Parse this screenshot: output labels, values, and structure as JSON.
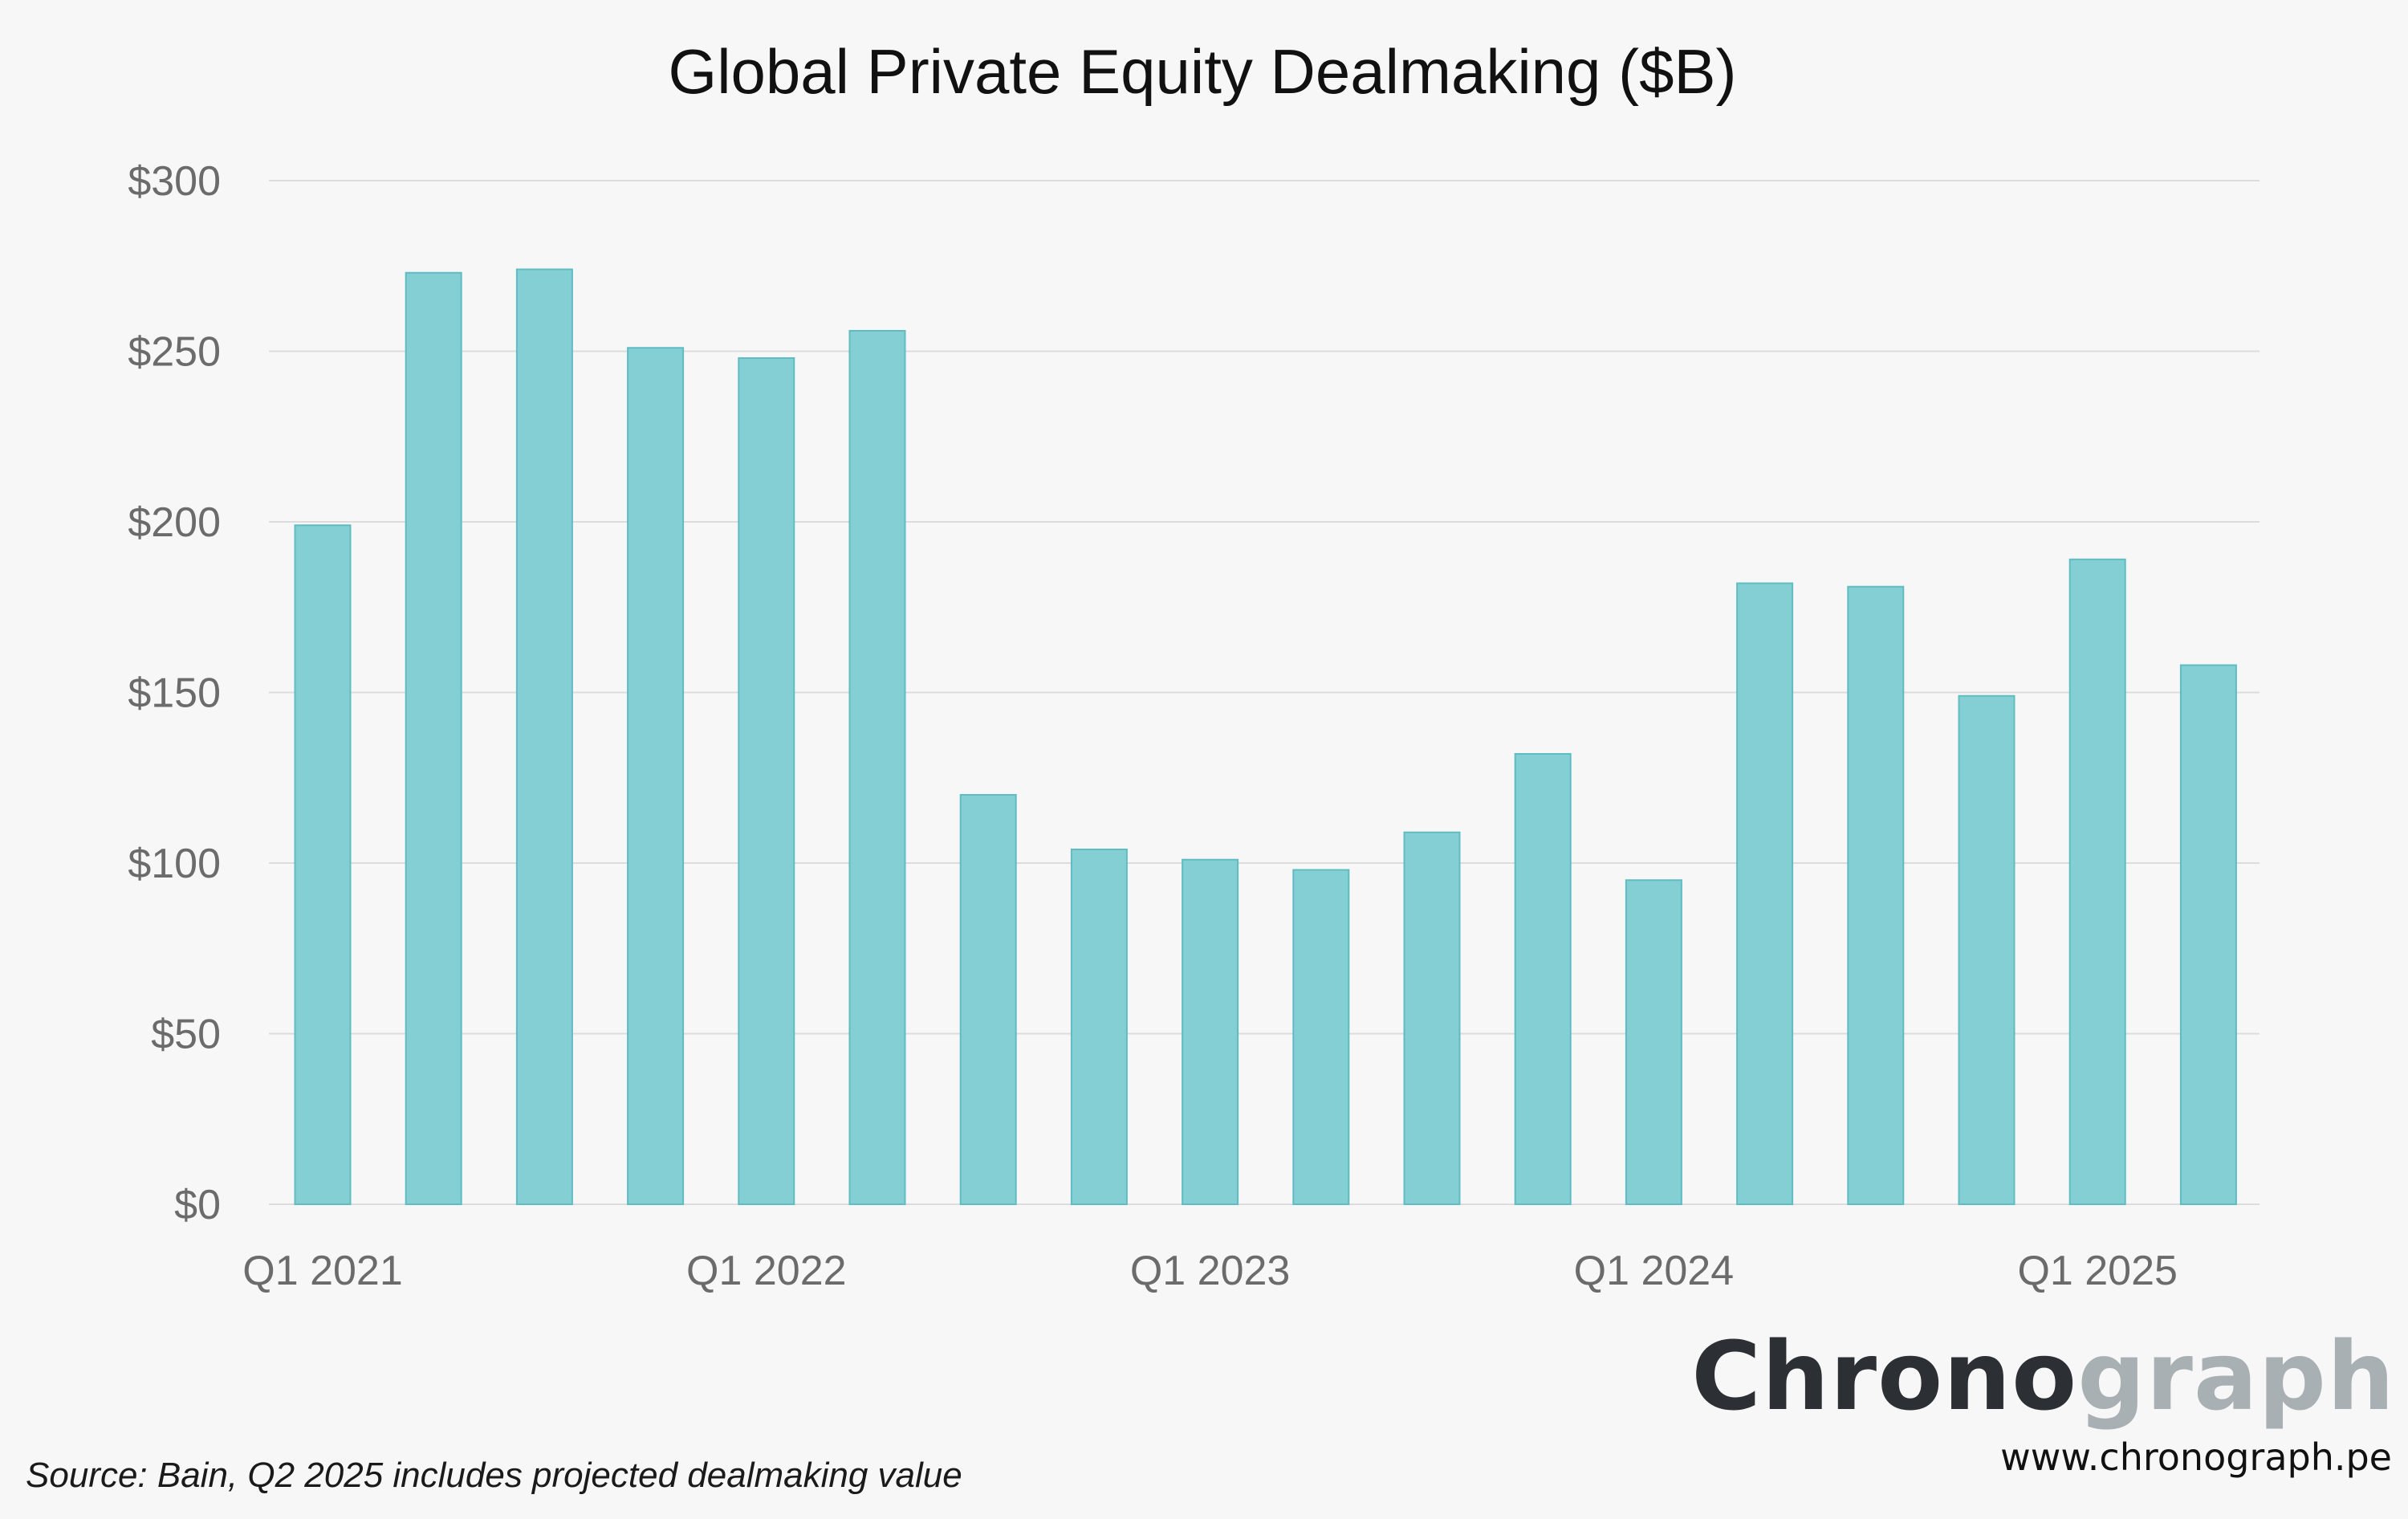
{
  "chart_data": {
    "type": "bar",
    "title": "Global Private Equity Dealmaking ($B)",
    "xlabel": "",
    "ylabel": "",
    "ylim": [
      0,
      300
    ],
    "y_ticks": [
      0,
      50,
      100,
      150,
      200,
      250,
      300
    ],
    "y_tick_labels": [
      "$0",
      "$50",
      "$100",
      "$150",
      "$200",
      "$250",
      "$300"
    ],
    "categories": [
      "Q1 2021",
      "Q2 2021",
      "Q3 2021",
      "Q4 2021",
      "Q1 2022",
      "Q2 2022",
      "Q3 2022",
      "Q4 2022",
      "Q1 2023",
      "Q2 2023",
      "Q3 2023",
      "Q4 2023",
      "Q1 2024",
      "Q2 2024",
      "Q3 2024",
      "Q4 2024",
      "Q1 2025",
      "Q2 2025"
    ],
    "visible_x_labels": [
      "Q1 2021",
      "Q1 2022",
      "Q1 2023",
      "Q1 2024",
      "Q1 2025"
    ],
    "values": [
      199,
      273,
      274,
      251,
      248,
      256,
      120,
      104,
      101,
      98,
      109,
      132,
      95,
      182,
      181,
      149,
      189,
      158
    ],
    "grid": true,
    "legend": "none",
    "colors": {
      "bar_fill": "#84cfd3",
      "bar_stroke": "#5fbcc2",
      "grid": "#dcdcdc",
      "background": "#f7f7f7"
    }
  },
  "source_note": "Source: Bain, Q2 2025  includes projected dealmaking value",
  "brand": {
    "part_dark": "Chrono",
    "part_light": "graph",
    "url": "www.chronograph.pe"
  }
}
